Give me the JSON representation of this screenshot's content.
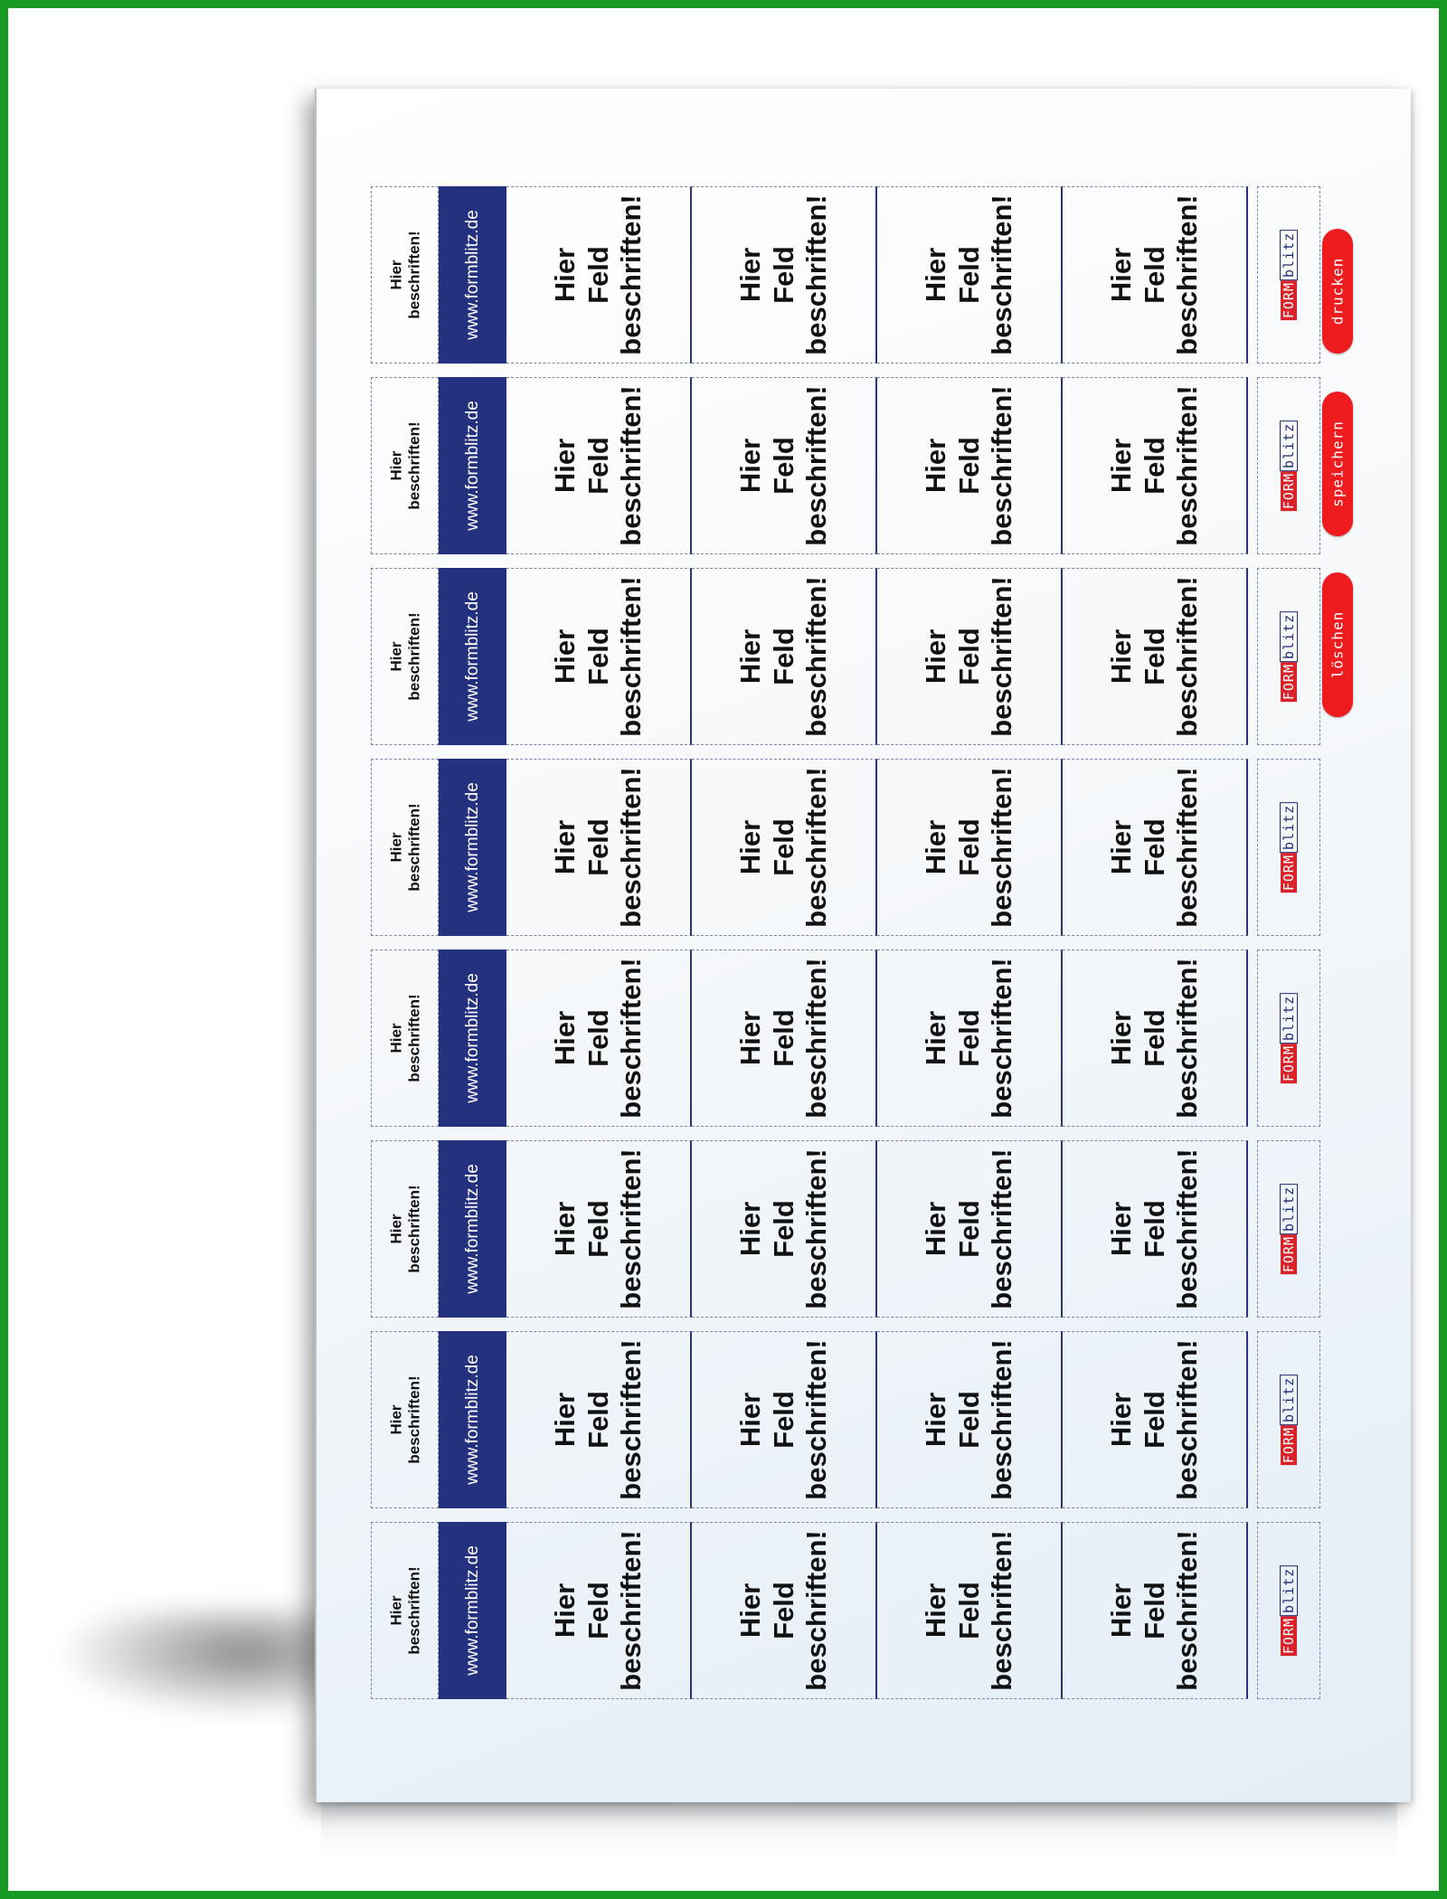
{
  "label": {
    "small_text": "Hier\nbeschriften!",
    "url_text": "www.formblitz.de",
    "field_text": "Hier\nFeld\nbeschriften!",
    "logo_form": "FORM",
    "logo_blitz": "blitz"
  },
  "buttons": {
    "print": "drucken",
    "save": "speichern",
    "clear": "löschen"
  },
  "colors": {
    "frame": "#169a22",
    "url_band": "#24317f",
    "button": "#ee1b1f"
  }
}
